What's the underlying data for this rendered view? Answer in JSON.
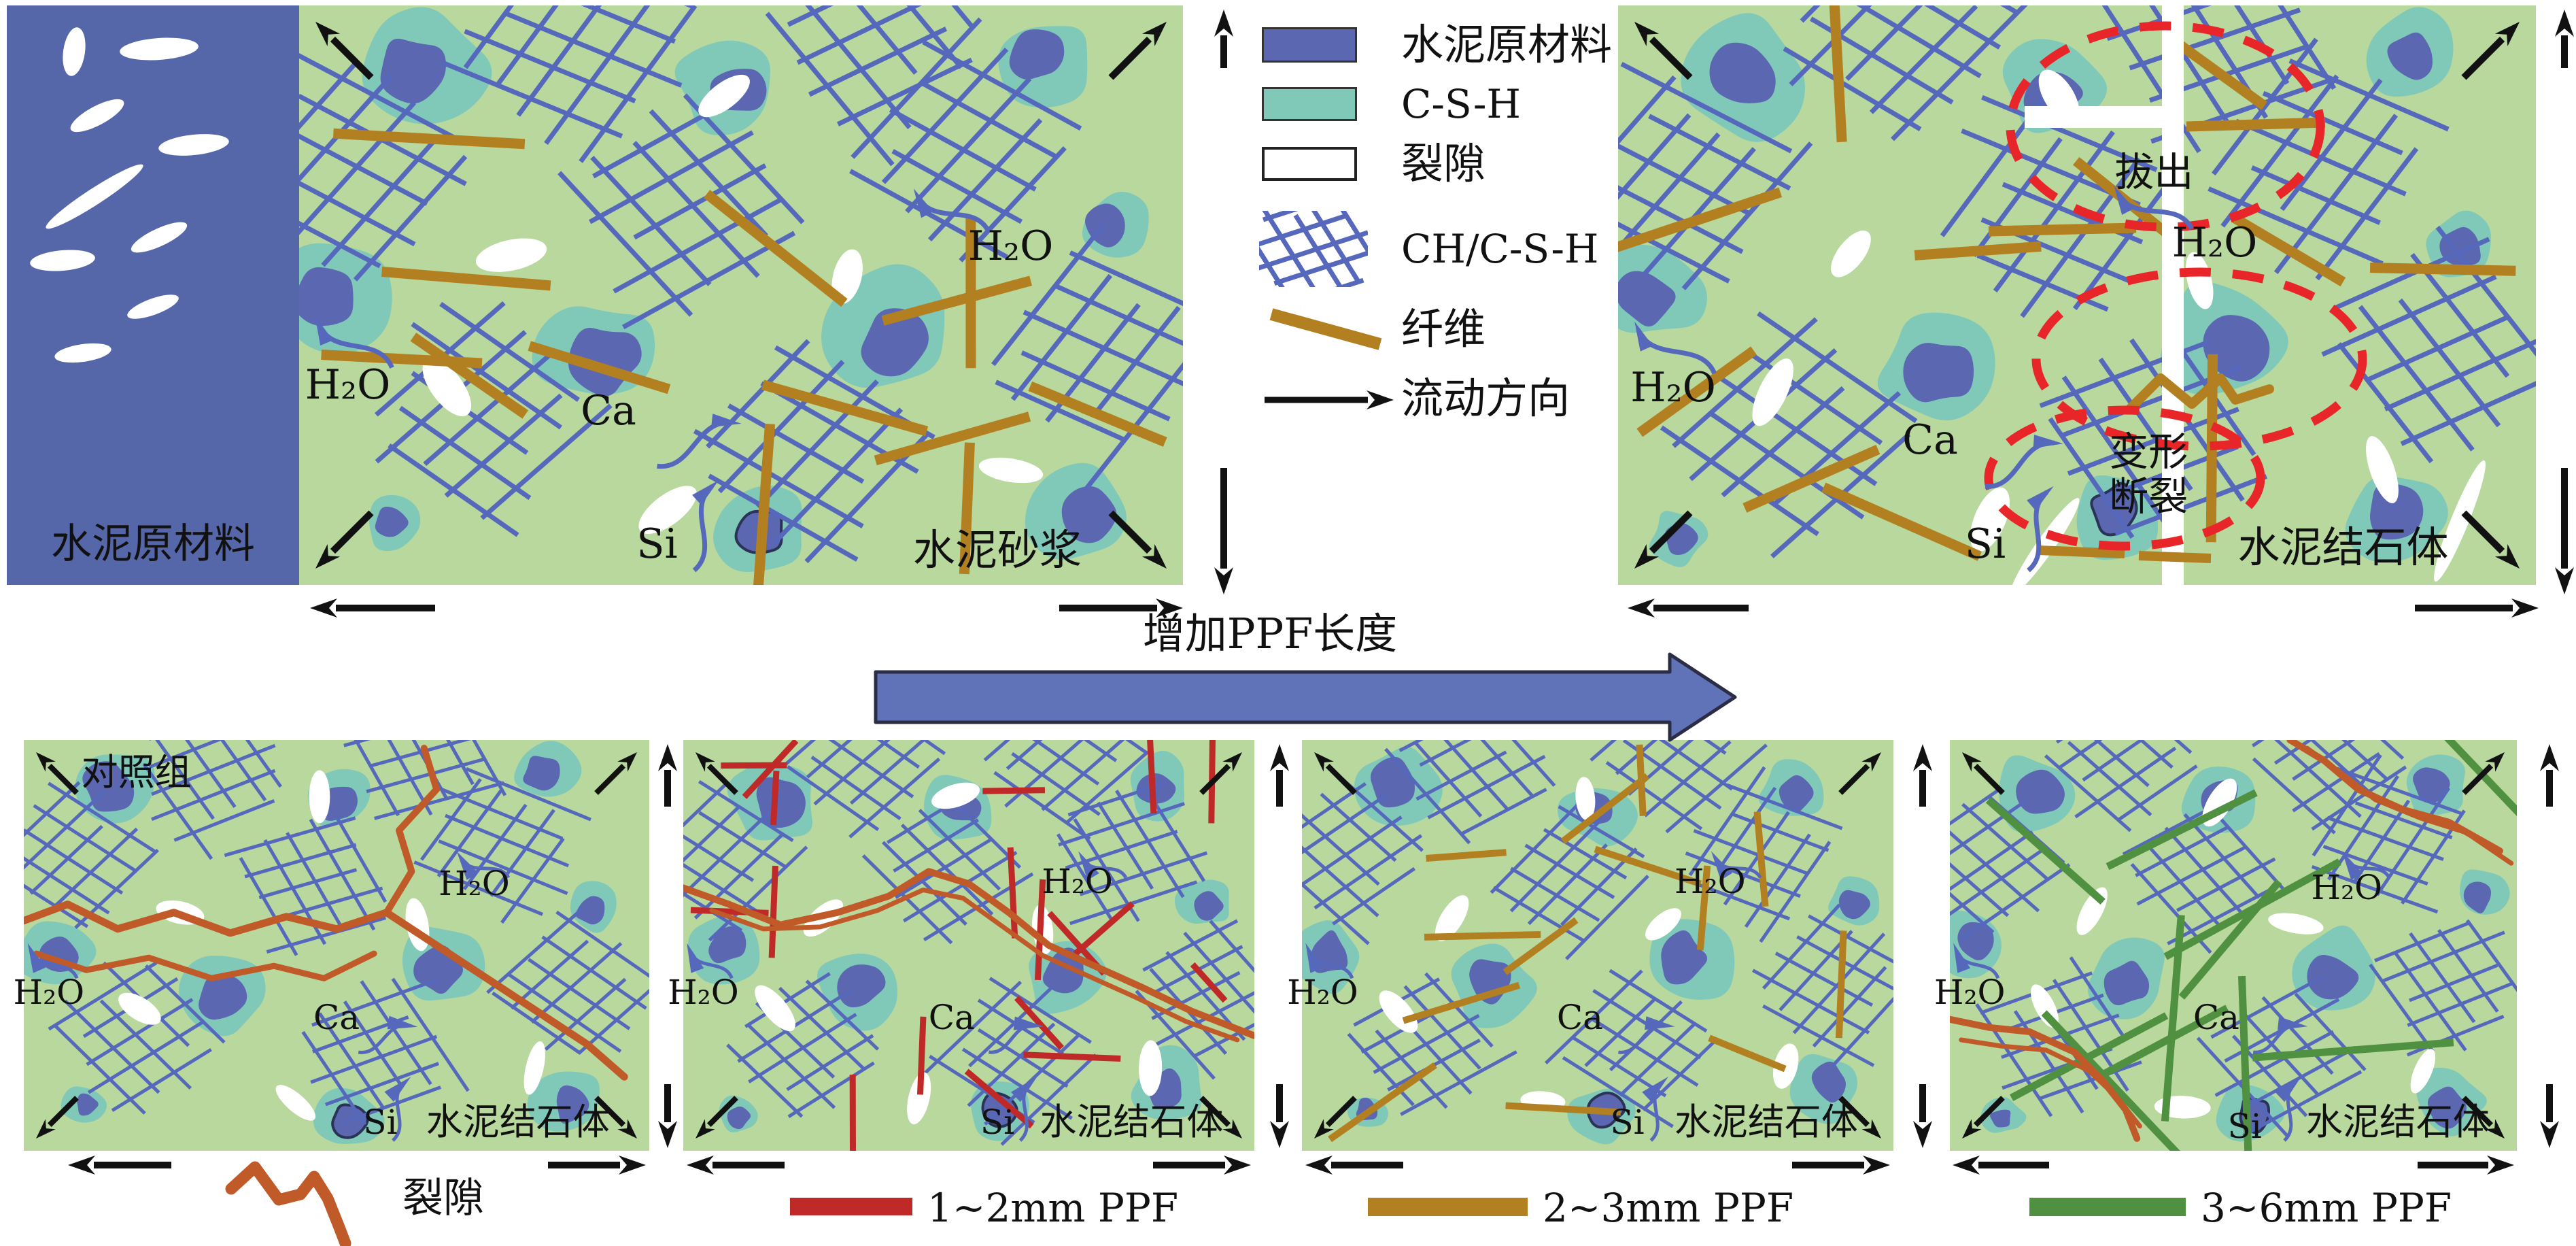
{
  "colors": {
    "panel_green": "#b8d89d",
    "csh_teal": "#80c9b8",
    "cement_blue": "#5b67b0",
    "raw_panel_blue": "#5566a9",
    "grid_blue": "#5668bc",
    "fiber_brown": "#b28020",
    "crack_orange": "#c05a28",
    "ppf_red": "#bf2a28",
    "ppf_brown": "#b28020",
    "ppf_green": "#4f9140",
    "dashed_red": "#e8262a",
    "big_arrow_blue": "#6173b8",
    "ink": "#111111"
  },
  "labels": {
    "raw": "水泥原材料",
    "mortar": "水泥砂浆",
    "stone": "水泥结石体",
    "control": "对照组",
    "h2o": "H₂O",
    "ca": "Ca",
    "si": "Si",
    "pullout": "拔出",
    "deform": "变形",
    "fracture": "断裂",
    "main_arrow": "增加PPF长度"
  },
  "top_legend": {
    "items": [
      {
        "label": "水泥原材料",
        "swatch": "cement-raw-swatch"
      },
      {
        "label": "C-S-H",
        "swatch": "csh-swatch"
      },
      {
        "label": "裂隙",
        "swatch": "crack-void-swatch"
      },
      {
        "label": "CH/C-S-H",
        "swatch": "ch-csh-grid-icon"
      },
      {
        "label": "纤维",
        "swatch": "fiber-line-icon"
      },
      {
        "label": "流动方向",
        "swatch": "flow-direction-arrow-icon"
      }
    ]
  },
  "bottom_legend": {
    "items": [
      {
        "label": "裂隙",
        "swatch": "crack-wave-icon",
        "color": "#c05a28"
      },
      {
        "label": "1~2mm PPF",
        "swatch": "line",
        "color": "#bf2a28"
      },
      {
        "label": "2~3mm PPF",
        "swatch": "line",
        "color": "#b28020"
      },
      {
        "label": "3~6mm PPF",
        "swatch": "line",
        "color": "#4f9140"
      }
    ]
  }
}
